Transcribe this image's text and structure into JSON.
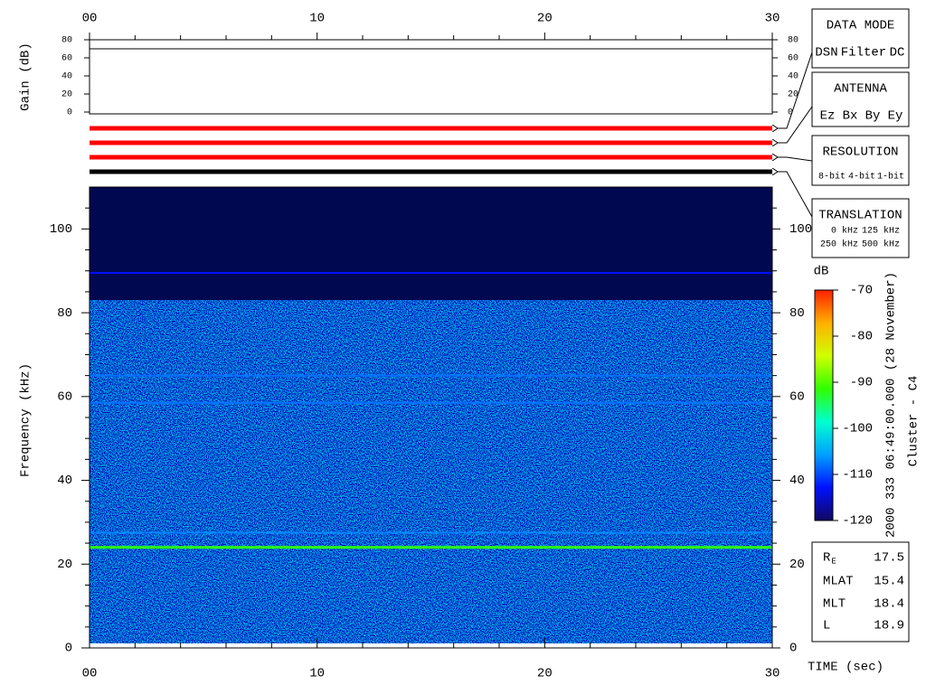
{
  "chart_data": {
    "type": "spectrogram",
    "xlabel": "TIME (sec)",
    "xlim": [
      0,
      30
    ],
    "xticks": [
      {
        "value": 0,
        "label": "00"
      },
      {
        "value": 10,
        "label": "10"
      },
      {
        "value": 20,
        "label": "20"
      },
      {
        "value": 30,
        "label": "30"
      }
    ],
    "xminorticks": [
      2,
      4,
      6,
      8,
      12,
      14,
      16,
      18,
      22,
      24,
      26,
      28
    ],
    "gain": {
      "ylabel": "Gain (dB)",
      "ylim": [
        0,
        80
      ],
      "yticks": [
        0,
        20,
        40,
        60,
        80
      ],
      "level": 70
    },
    "spectrogram": {
      "ylabel": "Frequency (kHz)",
      "ylim": [
        0,
        110
      ],
      "yticks": [
        0,
        20,
        40,
        60,
        80,
        100
      ],
      "yminorticks": [
        5,
        10,
        15,
        25,
        30,
        35,
        45,
        50,
        55,
        65,
        70,
        75,
        85,
        90,
        95,
        105
      ],
      "background_color": "#000850",
      "noise_top": 83,
      "lines": [
        {
          "freq": 89.5,
          "level": -113
        },
        {
          "freq": 65,
          "level": -108
        },
        {
          "freq": 58.5,
          "level": -108
        },
        {
          "freq": 27.5,
          "level": -107
        },
        {
          "freq": 24,
          "level": -92
        }
      ]
    },
    "colorbar": {
      "label": "dB",
      "lim": [
        -120,
        -70
      ],
      "ticks": [
        -70,
        -80,
        -90,
        -100,
        -110,
        -120
      ],
      "colors": [
        "#100860",
        "#0010ff",
        "#00a0ff",
        "#00ffd0",
        "#30ff00",
        "#d0ff00",
        "#ffb000",
        "#ff2000"
      ]
    },
    "panels": [
      {
        "title": "DATA MODE",
        "options": [
          {
            "text": "DSN",
            "color": "#ff0000"
          },
          {
            "text": "Filter",
            "color": "#00dd00"
          },
          {
            "text": "DC",
            "color": "#0000ff"
          }
        ],
        "selected": 0
      },
      {
        "title": "ANTENNA",
        "options": [
          {
            "text": "Ez",
            "color": "#ff0000"
          },
          {
            "text": "Bx",
            "color": "#00cc00"
          },
          {
            "text": "By",
            "color": "#0000ff"
          },
          {
            "text": "Ey",
            "color": "#000000"
          }
        ],
        "selected": 0
      },
      {
        "title": "RESOLUTION",
        "options": [
          {
            "text": "8-bit",
            "color": "#ff0000"
          },
          {
            "text": "4-bit",
            "color": "#00cc00"
          },
          {
            "text": "1-bit",
            "color": "#0000ff"
          }
        ],
        "selected": 0
      },
      {
        "title": "TRANSLATION",
        "options": [
          {
            "text": "0 kHz",
            "color": "#ff0000"
          },
          {
            "text": "125 kHz",
            "color": "#00cc00"
          },
          {
            "text": "250 kHz",
            "color": "#0000ff"
          },
          {
            "text": "500 kHz",
            "color": "#000000"
          }
        ],
        "selected": 3
      }
    ],
    "info": [
      {
        "label": "R",
        "sub": "E",
        "value": "17.5"
      },
      {
        "label": "MLAT",
        "value": "15.4"
      },
      {
        "label": "MLT",
        "value": "18.4"
      },
      {
        "label": "L",
        "value": "18.9"
      }
    ],
    "date": "2000 333 06:49:00.000 (28 November)",
    "spacecraft": "Cluster - C4"
  }
}
